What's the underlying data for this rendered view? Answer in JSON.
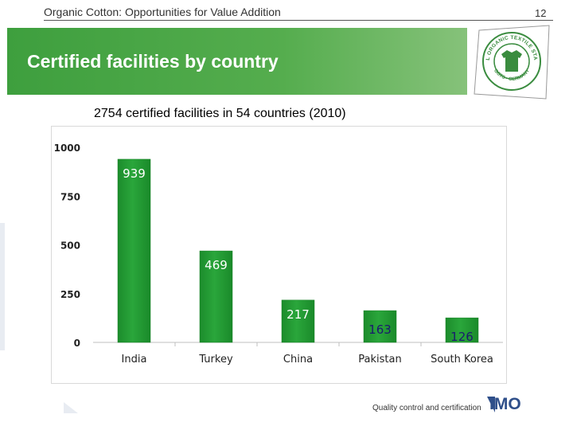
{
  "header": {
    "title": "Organic Cotton: Opportunities for Value Addition",
    "page_number": "12"
  },
  "banner": {
    "title": "Certified facilities by country"
  },
  "logo": {
    "top_text": "GLOBAL ORGANIC TEXTILE STANDARD",
    "bottom_text": "GOTS - GERMANY",
    "color": "#3a8c3f"
  },
  "chart_data": {
    "type": "bar",
    "title": "2754 certified facilities in 54 countries (2010)",
    "categories": [
      "India",
      "Turkey",
      "China",
      "Pakistan",
      "South Korea"
    ],
    "values": [
      939,
      469,
      217,
      163,
      126
    ],
    "data_labels": [
      "939",
      "469",
      "217",
      "163",
      "126"
    ],
    "ylim": [
      0,
      1000
    ],
    "yticks": [
      "0",
      "250",
      "500",
      "750",
      "1000"
    ],
    "xlabel": "",
    "ylabel": "",
    "grid": false,
    "bar_color": "#2aa63b"
  },
  "footer": {
    "text": "Quality control and certification",
    "logo_text": "IMO"
  }
}
